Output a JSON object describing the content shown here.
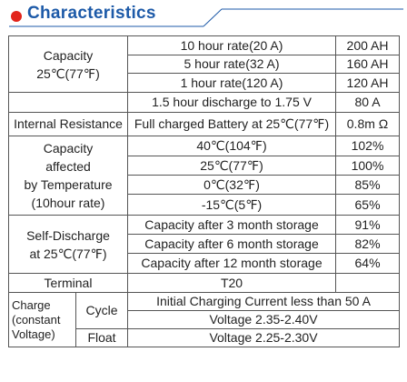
{
  "header": {
    "title": "Characteristics"
  },
  "capacity": {
    "label": [
      "Capacity",
      "25℃(77℉)"
    ],
    "rates": [
      {
        "rate": "10 hour rate(20 A)",
        "value": "200 AH"
      },
      {
        "rate": "5 hour rate(32 A)",
        "value": "160 AH"
      },
      {
        "rate": "1 hour rate(120 A)",
        "value": "120 AH"
      }
    ],
    "discharge": {
      "rate": "1.5 hour discharge to 1.75 V",
      "value": "80 A"
    }
  },
  "internal_resistance": {
    "label": "Internal Resistance",
    "condition": "Full charged Battery at 25℃(77℉)",
    "value": "0.8m Ω"
  },
  "temperature": {
    "label": [
      "Capacity",
      "affected",
      "by Temperature",
      "(10hour rate)"
    ],
    "rows": [
      {
        "temp": "40℃(104℉)",
        "value": "102%"
      },
      {
        "temp": "25℃(77℉)",
        "value": "100%"
      },
      {
        "temp": "0℃(32℉)",
        "value": "85%"
      },
      {
        "temp": "-15℃(5℉)",
        "value": "65%"
      }
    ]
  },
  "self_discharge": {
    "label": [
      "Self-Discharge",
      "at 25℃(77℉)"
    ],
    "rows": [
      {
        "condition": "Capacity after 3 month storage",
        "value": "91%"
      },
      {
        "condition": "Capacity after 6 month storage",
        "value": "82%"
      },
      {
        "condition": "Capacity after 12 month storage",
        "value": "64%"
      }
    ]
  },
  "terminal": {
    "label": "Terminal",
    "value": "T20"
  },
  "charge": {
    "label": [
      "Charge",
      "(constant",
      "Voltage)"
    ],
    "cycle": {
      "label": "Cycle",
      "lines": [
        "Initial Charging Current less than 50 A",
        "Voltage 2.35-2.40V"
      ]
    },
    "float": {
      "label": "Float",
      "value": "Voltage 2.25-2.30V"
    }
  }
}
